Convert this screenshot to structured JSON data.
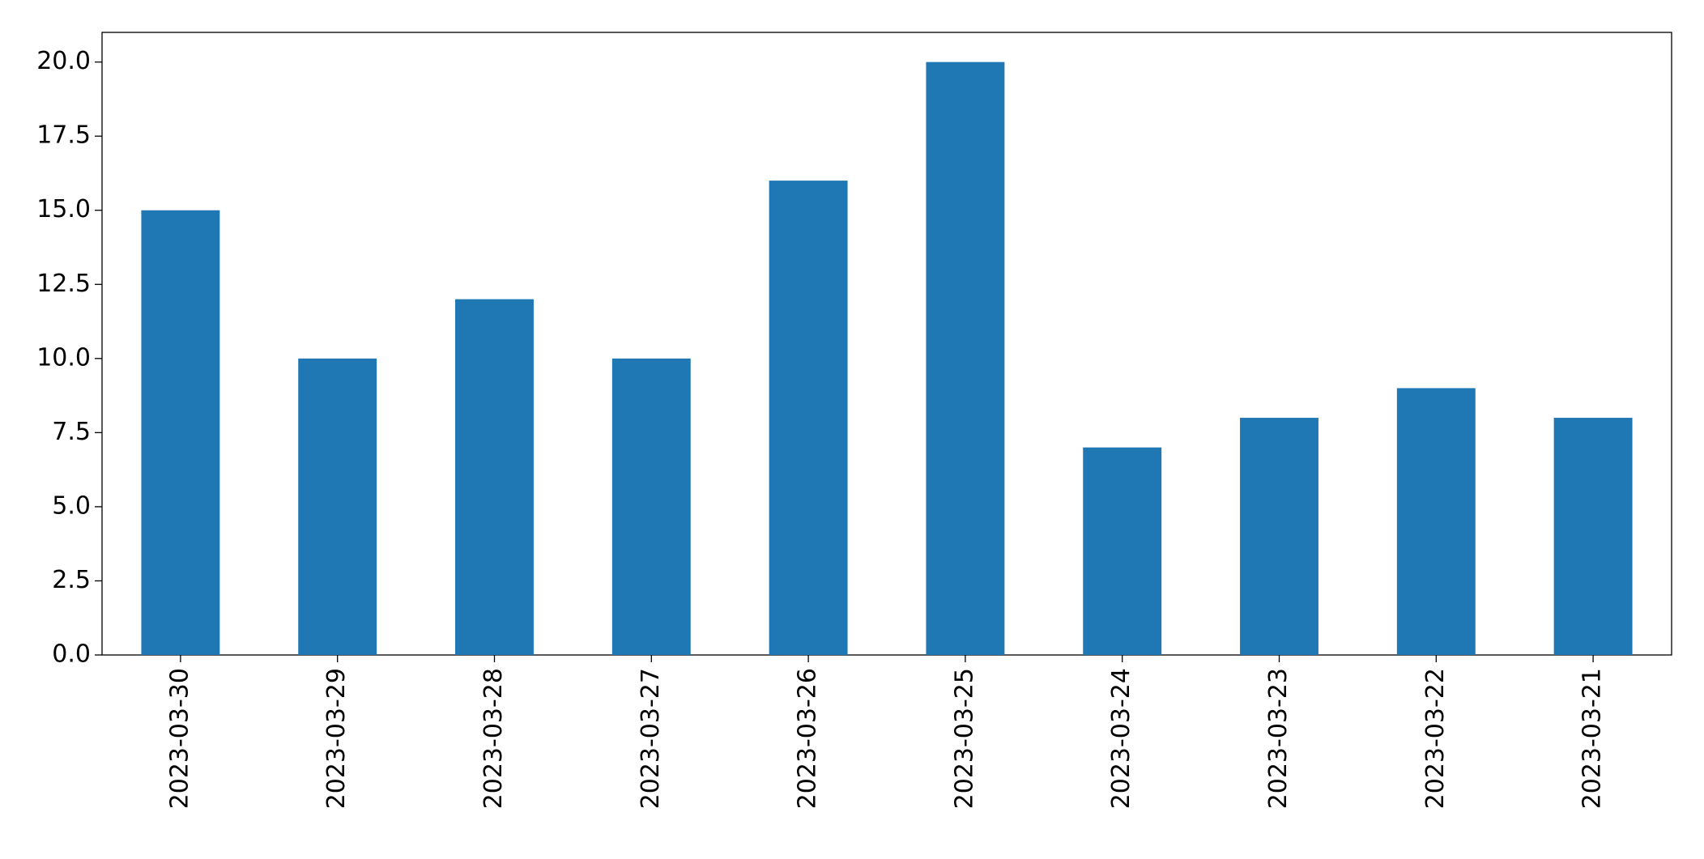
{
  "chart_data": {
    "type": "bar",
    "categories": [
      "2023-03-30",
      "2023-03-29",
      "2023-03-28",
      "2023-03-27",
      "2023-03-26",
      "2023-03-25",
      "2023-03-24",
      "2023-03-23",
      "2023-03-22",
      "2023-03-21"
    ],
    "values": [
      15,
      10,
      12,
      10,
      16,
      20,
      7,
      8,
      9,
      8
    ],
    "color": "#1f77b4",
    "ylim": [
      0,
      21
    ],
    "yticks": [
      {
        "value": 0,
        "label": "0.0"
      },
      2.5,
      {
        "value": 5,
        "label": "5.0"
      },
      7.5,
      {
        "value": 10,
        "label": "10.0"
      },
      12.5,
      {
        "value": 15,
        "label": "15.0"
      },
      17.5,
      {
        "value": 20,
        "label": "20.0"
      }
    ],
    "grid": false
  }
}
